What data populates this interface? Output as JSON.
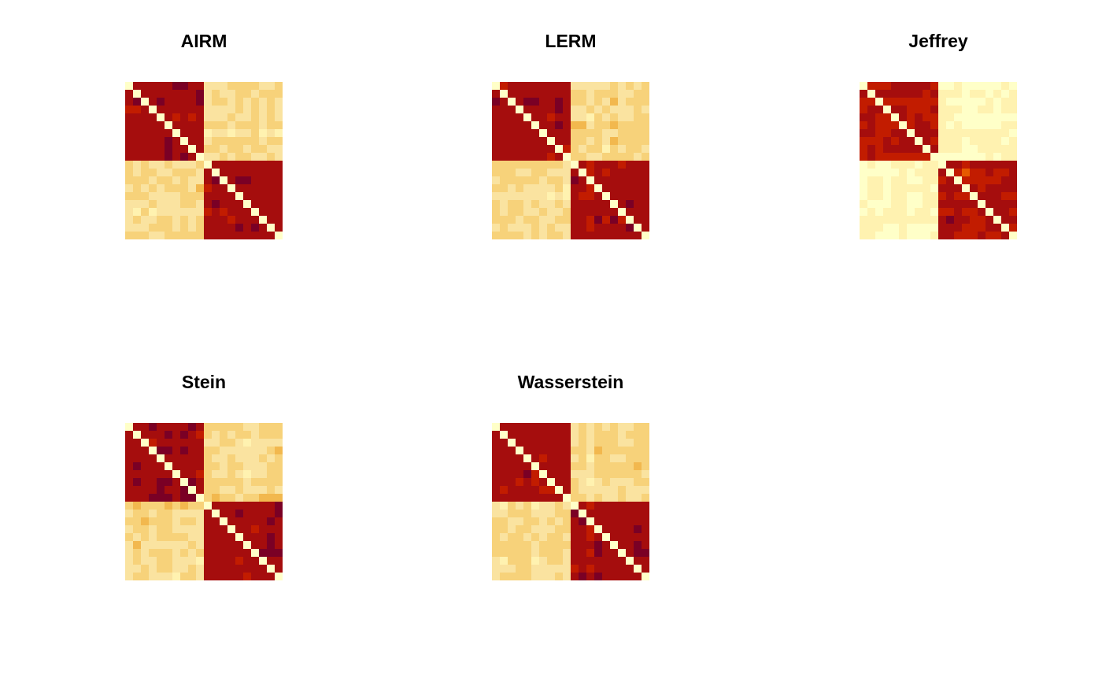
{
  "chart_data": [
    {
      "type": "heatmap",
      "title": "AIRM",
      "size": 20,
      "pattern": {
        "within_block": "dark",
        "between_block": "light"
      },
      "colormap": "heat"
    },
    {
      "type": "heatmap",
      "title": "LERM",
      "size": 20,
      "pattern": {
        "within_block": "dark",
        "between_block": "light"
      },
      "colormap": "heat"
    },
    {
      "type": "heatmap",
      "title": "Jeffrey",
      "size": 20,
      "pattern": {
        "within_block": "medium-dark",
        "between_block": "palest"
      },
      "colormap": "heat"
    },
    {
      "type": "heatmap",
      "title": "Stein",
      "size": 20,
      "pattern": {
        "within_block": "dark",
        "between_block": "light"
      },
      "colormap": "heat"
    },
    {
      "type": "heatmap",
      "title": "Wasserstein",
      "size": 20,
      "pattern": {
        "within_block": "dark",
        "between_block": "light"
      },
      "colormap": "heat"
    }
  ],
  "colors": {
    "heat_scale": [
      "#FFFFC8",
      "#FFF2B0",
      "#FAE3A0",
      "#F7D27A",
      "#F2B84E",
      "#F6A10A",
      "#E65A00",
      "#C21C00",
      "#A50D0D",
      "#7A0025"
    ]
  }
}
